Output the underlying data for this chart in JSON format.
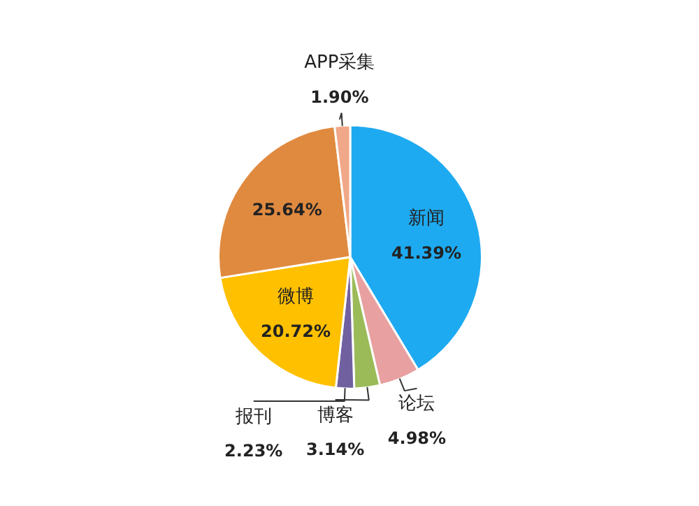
{
  "chart_data": {
    "type": "pie",
    "categories": [
      "新闻",
      "论坛",
      "博客",
      "报刊",
      "微博",
      null,
      "APP采集"
    ],
    "values": [
      41.39,
      4.98,
      3.14,
      2.23,
      20.72,
      25.64,
      1.9
    ],
    "value_labels": [
      "41.39%",
      "4.98%",
      "3.14%",
      "2.23%",
      "20.72%",
      "25.64%",
      "1.90%"
    ],
    "colors": [
      "#1eaaf1",
      "#e8a0a0",
      "#9bbb59",
      "#7060a0",
      "#ffc000",
      "#e08a40",
      "#f0a888"
    ]
  }
}
